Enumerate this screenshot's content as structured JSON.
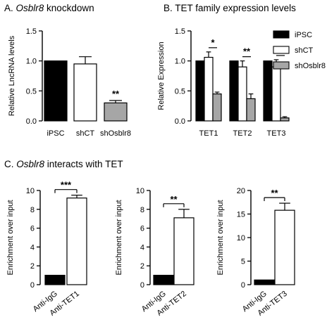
{
  "panels": {
    "a": {
      "letter": "A.",
      "italic": "Osblr8",
      "rest": " knockdown"
    },
    "b": {
      "letter": "B.",
      "italic": "",
      "rest": "TET family expression levels"
    },
    "c": {
      "letter": "C.",
      "italic": "Osblr8",
      "rest": " interacts with TET"
    }
  },
  "chart_data": [
    {
      "id": "A",
      "type": "bar",
      "ylabel": "Relative LncRNA levels",
      "ylim": [
        0,
        1.5
      ],
      "yticks": [
        "0.0",
        "0.5",
        "1.0",
        "1.5"
      ],
      "categories": [
        "iPSC",
        "shCT",
        "shOsblr8"
      ],
      "values": [
        1.0,
        0.95,
        0.3
      ],
      "errors": [
        0.0,
        0.12,
        0.04
      ],
      "colors": [
        "#000000",
        "#ffffff",
        "#a6a6a6"
      ],
      "significance": [
        {
          "text": "**",
          "bar": 2
        }
      ]
    },
    {
      "id": "B",
      "type": "bar",
      "ylabel": "Relative Expression",
      "ylim": [
        0,
        1.5
      ],
      "yticks": [
        "0.0",
        "0.5",
        "1.0",
        "1.5"
      ],
      "categories": [
        "TET1",
        "TET2",
        "TET3"
      ],
      "series": [
        {
          "name": "iPSC",
          "color": "#000000",
          "values": [
            1.0,
            1.0,
            1.0
          ],
          "errors": [
            0,
            0,
            0
          ]
        },
        {
          "name": "shCT",
          "color": "#ffffff",
          "values": [
            1.06,
            0.9,
            0.9
          ],
          "errors": [
            0.09,
            0.1,
            0.12
          ]
        },
        {
          "name": "shOsblr8",
          "color": "#a6a6a6",
          "values": [
            0.45,
            0.37,
            0.05
          ],
          "errors": [
            0.03,
            0.08,
            0.02
          ]
        }
      ],
      "significance": [
        {
          "text": "*",
          "group": 0
        },
        {
          "text": "**",
          "group": 1
        },
        {
          "text": "**",
          "group": 2
        }
      ],
      "legend": "right"
    },
    {
      "id": "C1",
      "type": "bar",
      "ylabel": "Enrichment over input",
      "ylim": [
        0,
        10
      ],
      "yticks": [
        "0",
        "2",
        "4",
        "6",
        "8",
        "10"
      ],
      "categories": [
        "Anti-IgG",
        "Anti-TET1"
      ],
      "values": [
        1.0,
        9.2
      ],
      "errors": [
        0,
        0.3
      ],
      "colors": [
        "#000000",
        "#ffffff"
      ],
      "significance": [
        {
          "text": "***"
        }
      ]
    },
    {
      "id": "C2",
      "type": "bar",
      "ylabel": "Enrichment over input",
      "ylim": [
        0,
        10
      ],
      "yticks": [
        "0",
        "2",
        "4",
        "6",
        "8",
        "10"
      ],
      "categories": [
        "Anti-IgG",
        "Anti-TET2"
      ],
      "values": [
        1.0,
        7.1
      ],
      "errors": [
        0,
        0.9
      ],
      "colors": [
        "#000000",
        "#ffffff"
      ],
      "significance": [
        {
          "text": "**"
        }
      ]
    },
    {
      "id": "C3",
      "type": "bar",
      "ylabel": "Enrichment over input",
      "ylim": [
        0,
        20
      ],
      "yticks": [
        "0",
        "5",
        "10",
        "15",
        "20"
      ],
      "categories": [
        "Anti-IgG",
        "Anti-TET3"
      ],
      "values": [
        1.0,
        15.8
      ],
      "errors": [
        0,
        1.5
      ],
      "colors": [
        "#000000",
        "#ffffff"
      ],
      "significance": [
        {
          "text": "**"
        }
      ]
    }
  ]
}
